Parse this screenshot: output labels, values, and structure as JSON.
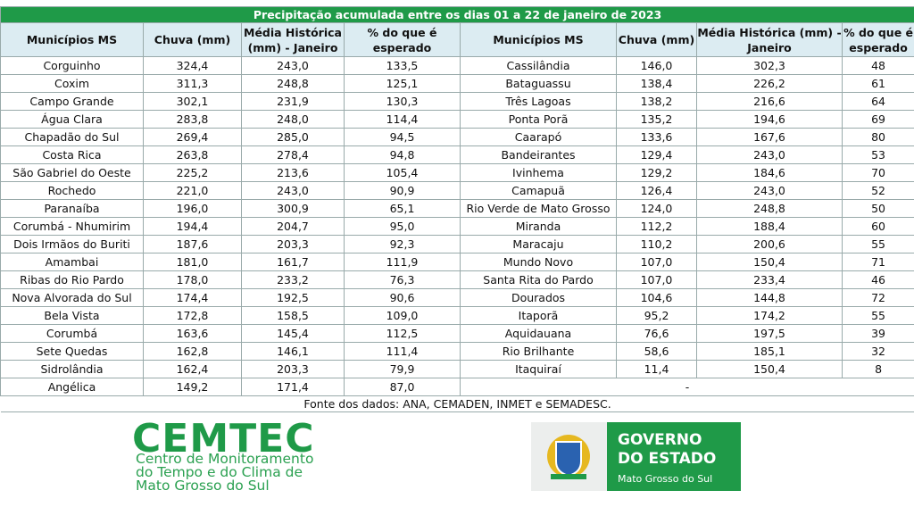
{
  "table": {
    "title": "Precipitação acumulada entre os dias 01 a 22 de janeiro de 2023",
    "headers": [
      "Municípios MS",
      "Chuva (mm)",
      "Média Histórica (mm) - Janeiro",
      "% do que é esperado",
      "Municípios MS",
      "Chuva (mm)",
      "Média Histórica (mm) - Janeiro",
      "% do que é esperado"
    ],
    "left_rows": [
      [
        "Corguinho",
        "324,4",
        "243,0",
        "133,5"
      ],
      [
        "Coxim",
        "311,3",
        "248,8",
        "125,1"
      ],
      [
        "Campo Grande",
        "302,1",
        "231,9",
        "130,3"
      ],
      [
        "Água Clara",
        "283,8",
        "248,0",
        "114,4"
      ],
      [
        "Chapadão do Sul",
        "269,4",
        "285,0",
        "94,5"
      ],
      [
        "Costa Rica",
        "263,8",
        "278,4",
        "94,8"
      ],
      [
        "São Gabriel do Oeste",
        "225,2",
        "213,6",
        "105,4"
      ],
      [
        "Rochedo",
        "221,0",
        "243,0",
        "90,9"
      ],
      [
        "Paranaíba",
        "196,0",
        "300,9",
        "65,1"
      ],
      [
        "Corumbá - Nhumirim",
        "194,4",
        "204,7",
        "95,0"
      ],
      [
        "Dois Irmãos do Buriti",
        "187,6",
        "203,3",
        "92,3"
      ],
      [
        "Amambai",
        "181,0",
        "161,7",
        "111,9"
      ],
      [
        "Ribas do Rio Pardo",
        "178,0",
        "233,2",
        "76,3"
      ],
      [
        "Nova Alvorada do Sul",
        "174,4",
        "192,5",
        "90,6"
      ],
      [
        "Bela Vista",
        "172,8",
        "158,5",
        "109,0"
      ],
      [
        "Corumbá",
        "163,6",
        "145,4",
        "112,5"
      ],
      [
        "Sete Quedas",
        "162,8",
        "146,1",
        "111,4"
      ],
      [
        "Sidrolândia",
        "162,4",
        "203,3",
        "79,9"
      ],
      [
        "Angélica",
        "149,2",
        "171,4",
        "87,0"
      ]
    ],
    "right_rows": [
      [
        "Cassilândia",
        "146,0",
        "302,3",
        "48"
      ],
      [
        "Bataguassu",
        "138,4",
        "226,2",
        "61"
      ],
      [
        "Três Lagoas",
        "138,2",
        "216,6",
        "64"
      ],
      [
        "Ponta Porã",
        "135,2",
        "194,6",
        "69"
      ],
      [
        "Caarapó",
        "133,6",
        "167,6",
        "80"
      ],
      [
        "Bandeirantes",
        "129,4",
        "243,0",
        "53"
      ],
      [
        "Ivinhema",
        "129,2",
        "184,6",
        "70"
      ],
      [
        "Camapuã",
        "126,4",
        "243,0",
        "52"
      ],
      [
        "Rio Verde de Mato Grosso",
        "124,0",
        "248,8",
        "50"
      ],
      [
        "Miranda",
        "112,2",
        "188,4",
        "60"
      ],
      [
        "Maracaju",
        "110,2",
        "200,6",
        "55"
      ],
      [
        "Mundo Novo",
        "107,0",
        "150,4",
        "71"
      ],
      [
        "Santa Rita do Pardo",
        "107,0",
        "233,4",
        "46"
      ],
      [
        "Dourados",
        "104,6",
        "144,8",
        "72"
      ],
      [
        "Itaporã",
        "95,2",
        "174,2",
        "55"
      ],
      [
        "Aquidauana",
        "76,6",
        "197,5",
        "39"
      ],
      [
        "Rio Brilhante",
        "58,6",
        "185,1",
        "32"
      ],
      [
        "Itaquiraí",
        "11,4",
        "150,4",
        "8"
      ]
    ],
    "right_empty": "-",
    "source": "Fonte dos dados: ANA, CEMADEN, INMET e SEMADESC."
  },
  "logos": {
    "cemtec": "CEMTEC",
    "cemtec_subtitle": [
      "Centro de Monitoramento",
      "do Tempo e do Clima de",
      "Mato Grosso do Sul"
    ],
    "governo": [
      "GOVERNO",
      "DO ESTADO"
    ],
    "state": "Mato Grosso do Sul"
  }
}
